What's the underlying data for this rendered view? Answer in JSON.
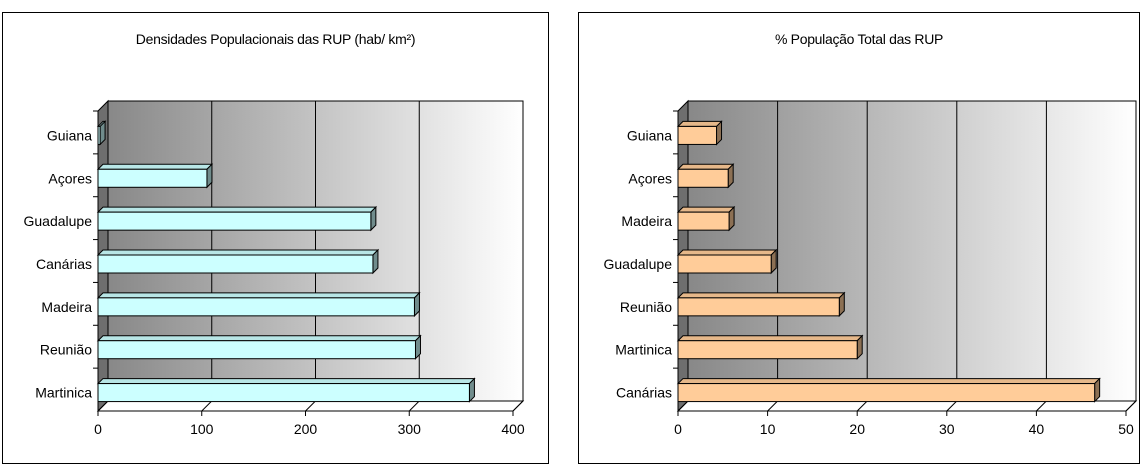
{
  "chart_data": [
    {
      "type": "bar",
      "orientation": "horizontal",
      "title": "Densidades Populacionais das RUP (hab/ km²)",
      "categories": [
        "Guiana",
        "Açores",
        "Guadalupe",
        "Canárias",
        "Madeira",
        "Reunião",
        "Martinica"
      ],
      "values": [
        2,
        105,
        263,
        265,
        305,
        306,
        358
      ],
      "xlim": [
        0,
        400
      ],
      "xticks": [
        "0",
        "100",
        "200",
        "300",
        "400"
      ],
      "bar_color": "#ccffff",
      "grid": true
    },
    {
      "type": "bar",
      "orientation": "horizontal",
      "title": "% População Total das RUP",
      "categories": [
        "Guiana",
        "Açores",
        "Madeira",
        "Guadalupe",
        "Reunião",
        "Martinica",
        "Canárias"
      ],
      "values": [
        4.3,
        5.6,
        5.7,
        10.4,
        18,
        20,
        46.5
      ],
      "xlim": [
        0,
        50
      ],
      "xticks": [
        "0",
        "10",
        "20",
        "30",
        "40",
        "50"
      ],
      "bar_color": "#ffcc99",
      "grid": true
    }
  ]
}
